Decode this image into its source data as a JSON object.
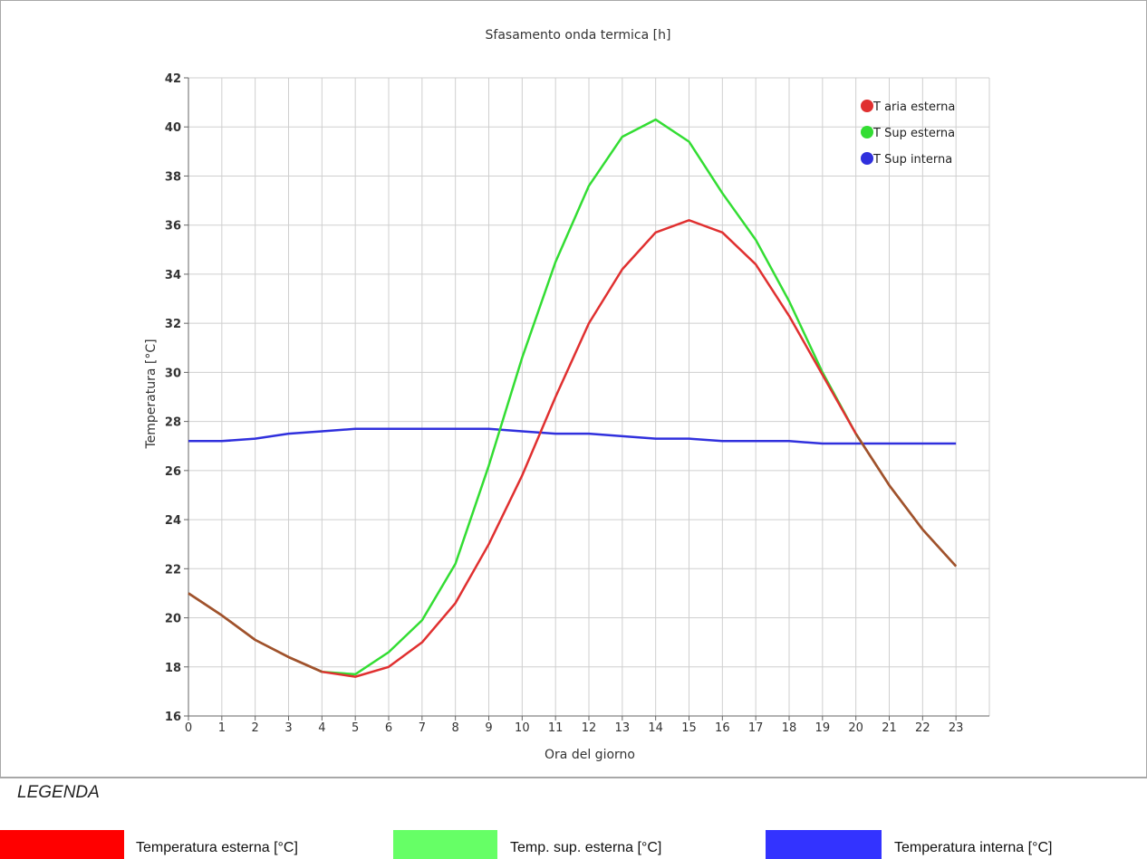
{
  "chart_data": {
    "type": "line",
    "title": "Sfasamento onda termica [h]",
    "xlabel": "Ora del giorno",
    "ylabel": "Temperatura [°C]",
    "xlim": [
      0,
      24
    ],
    "ylim": [
      16,
      42
    ],
    "xticks": [
      0,
      1,
      2,
      3,
      4,
      5,
      6,
      7,
      8,
      9,
      10,
      11,
      12,
      13,
      14,
      15,
      16,
      17,
      18,
      19,
      20,
      21,
      22,
      23
    ],
    "yticks": [
      16,
      18,
      20,
      22,
      24,
      26,
      28,
      30,
      32,
      34,
      36,
      38,
      40,
      42
    ],
    "grid": true,
    "legend_position": "top-right",
    "x": [
      0,
      1,
      2,
      3,
      4,
      5,
      6,
      7,
      8,
      9,
      10,
      11,
      12,
      13,
      14,
      15,
      16,
      17,
      18,
      19,
      20,
      21,
      22,
      23
    ],
    "series": [
      {
        "name": "T aria esterna",
        "color": "#e03030",
        "values": [
          21.0,
          20.1,
          19.1,
          18.4,
          17.8,
          17.6,
          18.0,
          19.0,
          20.6,
          23.0,
          25.8,
          29.0,
          32.0,
          34.2,
          35.7,
          36.2,
          35.7,
          34.4,
          32.3,
          29.9,
          27.5,
          25.4,
          23.6,
          22.1
        ]
      },
      {
        "name": "T Sup esterna",
        "color": "#33dd33",
        "values": [
          21.0,
          20.1,
          19.1,
          18.4,
          17.8,
          17.7,
          18.6,
          19.9,
          22.2,
          26.2,
          30.6,
          34.5,
          37.6,
          39.6,
          40.3,
          39.4,
          37.3,
          35.4,
          32.9,
          30.0,
          27.5,
          25.4,
          23.6,
          22.1
        ]
      },
      {
        "name": "T Sup interna",
        "color": "#3030dd",
        "values": [
          27.2,
          27.2,
          27.3,
          27.5,
          27.6,
          27.7,
          27.7,
          27.7,
          27.7,
          27.7,
          27.6,
          27.5,
          27.5,
          27.4,
          27.3,
          27.3,
          27.2,
          27.2,
          27.2,
          27.1,
          27.1,
          27.1,
          27.1,
          27.1
        ]
      }
    ]
  },
  "legend_section": {
    "heading": "LEGENDA",
    "items": [
      {
        "label": "Temperatura esterna [°C]",
        "color": "#ff0000"
      },
      {
        "label": "Temp. sup. esterna [°C]",
        "color": "#66ff66"
      },
      {
        "label": "Temperatura interna [°C]",
        "color": "#3333ff"
      }
    ]
  }
}
